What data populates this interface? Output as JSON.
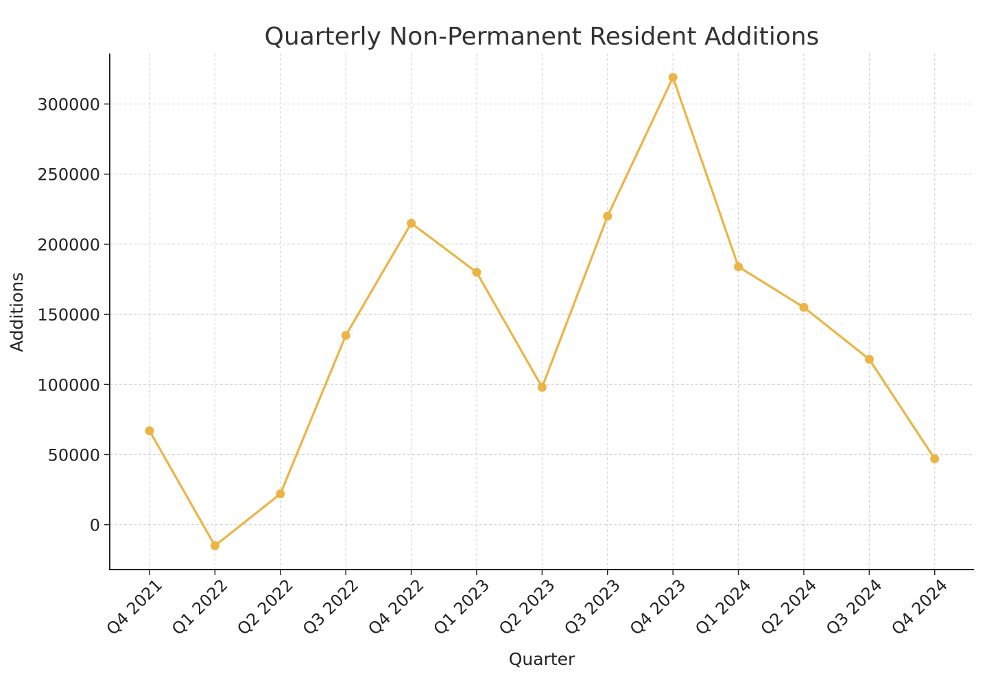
{
  "chart_data": {
    "type": "line",
    "title": "Quarterly Non-Permanent Resident Additions",
    "xlabel": "Quarter",
    "ylabel": "Additions",
    "categories": [
      "Q4 2021",
      "Q1 2022",
      "Q2 2022",
      "Q3 2022",
      "Q4 2022",
      "Q1 2023",
      "Q2 2023",
      "Q3 2023",
      "Q4 2023",
      "Q1 2024",
      "Q2 2024",
      "Q3 2024",
      "Q4 2024"
    ],
    "series": [
      {
        "values": [
          67000,
          -15000,
          22000,
          135000,
          215000,
          180000,
          98000,
          220000,
          319000,
          184000,
          155000,
          118000,
          47000
        ],
        "color": "#ecb444",
        "marker": "circle"
      }
    ],
    "yticks": [
      0,
      50000,
      100000,
      150000,
      200000,
      250000,
      300000
    ],
    "ylim": [
      -32000,
      336000
    ],
    "grid": true,
    "xtick_rotation": 45,
    "colors": {
      "line": "#ecb444",
      "grid": "#cccccc",
      "axis": "#222222",
      "text": "#222222"
    }
  }
}
